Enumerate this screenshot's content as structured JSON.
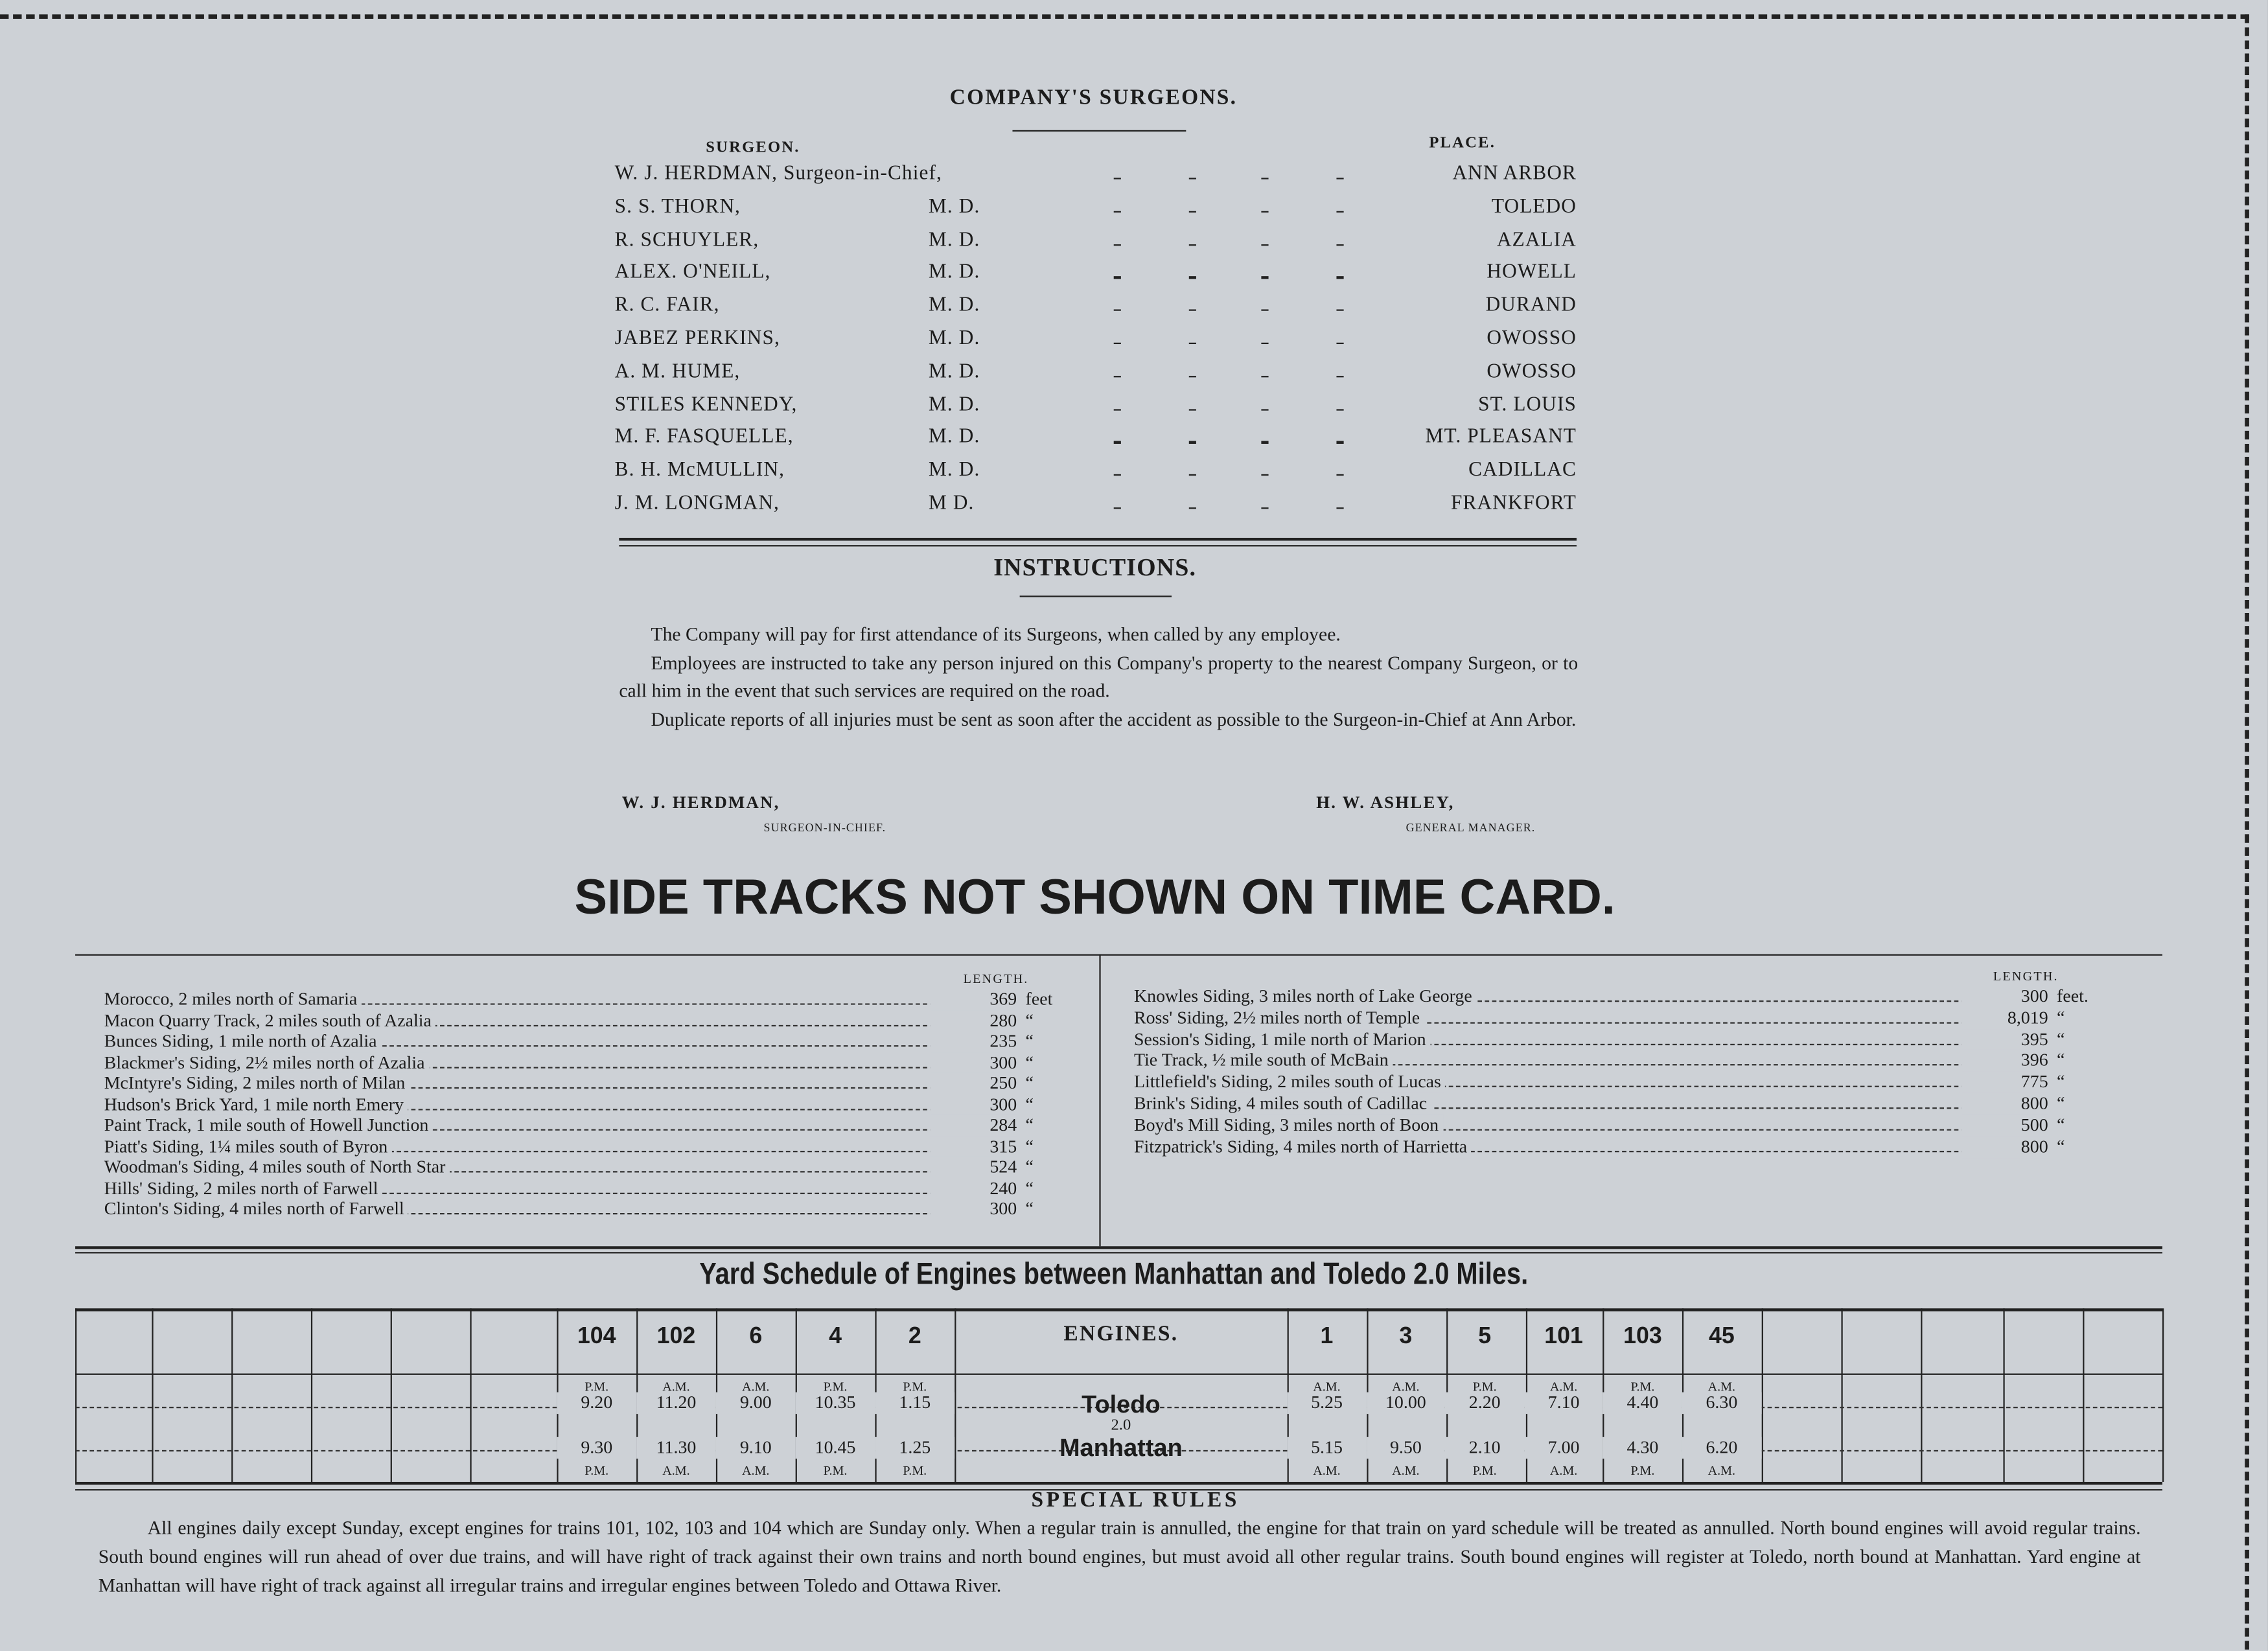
{
  "surgeons": {
    "title": "COMPANY'S SURGEONS.",
    "col_surgeon": "SURGEON.",
    "col_place": "PLACE.",
    "rows": [
      {
        "name": "W. J. HERDMAN, Surgeon-in-Chief,",
        "place": "ANN ARBOR"
      },
      {
        "name": "S. S. THORN,",
        "degree": "M. D.",
        "place": "TOLEDO"
      },
      {
        "name": "R. SCHUYLER,",
        "degree": "M. D.",
        "place": "AZALIA"
      },
      {
        "name": "ALEX. O'NEILL,",
        "degree": "M. D.",
        "place": "HOWELL"
      },
      {
        "name": "R. C. FAIR,",
        "degree": "M. D.",
        "place": "DURAND"
      },
      {
        "name": "JABEZ PERKINS,",
        "degree": "M. D.",
        "place": "OWOSSO"
      },
      {
        "name": "A. M. HUME,",
        "degree": "M. D.",
        "place": "OWOSSO"
      },
      {
        "name": "STILES KENNEDY,",
        "degree": "M. D.",
        "place": "ST. LOUIS"
      },
      {
        "name": "M. F. FASQUELLE,",
        "degree": "M. D.",
        "place": "MT. PLEASANT"
      },
      {
        "name": "B. H. McMULLIN,",
        "degree": "M. D.",
        "place": "CADILLAC"
      },
      {
        "name": "J. M. LONGMAN,",
        "degree": "M D.",
        "place": "FRANKFORT"
      }
    ]
  },
  "instructions": {
    "title": "INSTRUCTIONS.",
    "paragraphs": [
      "The Company will pay for first attendance of its Surgeons, when called by any employee.",
      "Employees are instructed to take any person injured on this Company's property to the nearest Company Surgeon, or to call him in the event that such services are required on the road.",
      "Duplicate reports of all injuries must be sent as soon after the accident as possible to the Surgeon-in-Chief at Ann Arbor."
    ],
    "signatures": [
      {
        "name": "W. J. HERDMAN,",
        "role": "SURGEON-IN-CHIEF."
      },
      {
        "name": "H. W. ASHLEY,",
        "role": "GENERAL MANAGER."
      }
    ]
  },
  "side_tracks": {
    "title": "SIDE TRACKS NOT SHOWN ON TIME CARD.",
    "length_header": "LENGTH.",
    "left": [
      {
        "place": "Morocco, 2 miles north of Samaria",
        "length": "369",
        "unit": "feet"
      },
      {
        "place": "Macon Quarry Track, 2 miles south of Azalia",
        "length": "280",
        "unit": "“"
      },
      {
        "place": "Bunces Siding, 1 mile north of Azalia",
        "length": "235",
        "unit": "“"
      },
      {
        "place": "Blackmer's Siding, 2½ miles north of Azalia",
        "length": "300",
        "unit": "“"
      },
      {
        "place": "McIntyre's Siding, 2 miles north of Milan",
        "length": "250",
        "unit": "“"
      },
      {
        "place": "Hudson's Brick Yard, 1 mile north Emery",
        "length": "300",
        "unit": "“"
      },
      {
        "place": "Paint Track, 1 mile south of Howell Junction",
        "length": "284",
        "unit": "“"
      },
      {
        "place": "Piatt's Siding, 1¼ miles south of Byron",
        "length": "315",
        "unit": "“"
      },
      {
        "place": "Woodman's Siding, 4 miles south of North Star",
        "length": "524",
        "unit": "“"
      },
      {
        "place": "Hills' Siding, 2 miles north of Farwell",
        "length": "240",
        "unit": "“"
      },
      {
        "place": "Clinton's Siding, 4 miles north of Farwell",
        "length": "300",
        "unit": "“"
      }
    ],
    "right": [
      {
        "place": "Knowles Siding, 3 miles north of Lake George",
        "length": "300",
        "unit": "feet."
      },
      {
        "place": "Ross' Siding, 2½ miles north of Temple",
        "length": "8,019",
        "unit": "“"
      },
      {
        "place": "Session's Siding, 1 mile north of Marion",
        "length": "395",
        "unit": "“"
      },
      {
        "place": "Tie Track, ½ mile south of McBain",
        "length": "396",
        "unit": "“"
      },
      {
        "place": "Littlefield's Siding, 2 miles south of Lucas",
        "length": "775",
        "unit": "“"
      },
      {
        "place": "Brink's Siding, 4 miles south of Cadillac",
        "length": "800",
        "unit": "“"
      },
      {
        "place": "Boyd's Mill Siding, 3 miles north of Boon",
        "length": "500",
        "unit": "“"
      },
      {
        "place": "Fitzpatrick's Siding, 4 miles north of Harrietta",
        "length": "800",
        "unit": "“"
      }
    ]
  },
  "yard_schedule": {
    "title": "Yard Schedule of Engines between Manhattan and Toledo 2.0 Miles.",
    "engines_header": "ENGINES.",
    "stations": {
      "top": "Toledo",
      "distance": "2.0",
      "bottom": "Manhattan"
    },
    "left_engines": [
      {
        "engine": "104",
        "top_period": "P.M.",
        "toledo": "9.20",
        "manhattan": "9.30",
        "bottom_period": "P.M."
      },
      {
        "engine": "102",
        "top_period": "A.M.",
        "toledo": "11.20",
        "manhattan": "11.30",
        "bottom_period": "A.M."
      },
      {
        "engine": "6",
        "top_period": "A.M.",
        "toledo": "9.00",
        "manhattan": "9.10",
        "bottom_period": "A.M."
      },
      {
        "engine": "4",
        "top_period": "P.M.",
        "toledo": "10.35",
        "manhattan": "10.45",
        "bottom_period": "P.M."
      },
      {
        "engine": "2",
        "top_period": "P.M.",
        "toledo": "1.15",
        "manhattan": "1.25",
        "bottom_period": "P.M."
      }
    ],
    "right_engines": [
      {
        "engine": "1",
        "top_period": "A.M.",
        "toledo": "5.25",
        "manhattan": "5.15",
        "bottom_period": "A.M."
      },
      {
        "engine": "3",
        "top_period": "A.M.",
        "toledo": "10.00",
        "manhattan": "9.50",
        "bottom_period": "A.M."
      },
      {
        "engine": "5",
        "top_period": "P.M.",
        "toledo": "2.20",
        "manhattan": "2.10",
        "bottom_period": "P.M."
      },
      {
        "engine": "101",
        "top_period": "A.M.",
        "toledo": "7.10",
        "manhattan": "7.00",
        "bottom_period": "A.M."
      },
      {
        "engine": "103",
        "top_period": "P.M.",
        "toledo": "4.40",
        "manhattan": "4.30",
        "bottom_period": "P.M."
      },
      {
        "engine": "45",
        "top_period": "A.M.",
        "toledo": "6.30",
        "manhattan": "6.20",
        "bottom_period": "A.M."
      }
    ]
  },
  "special_rules": {
    "title": "SPECIAL RULES",
    "text": "All engines daily except Sunday, except engines for trains 101, 102, 103 and 104 which are Sunday only. When a regular train is annulled, the engine for that train on yard schedule will be treated as annulled. North bound engines will avoid regular trains. South bound engines will run ahead of over due trains, and will have right of track against their own trains and north bound engines, but must avoid all other regular trains. South bound engines will register at Toledo, north bound at Manhattan. Yard engine at Manhattan will have right of track against all irregular trains and irregular engines between Toledo and Ottawa River."
  }
}
